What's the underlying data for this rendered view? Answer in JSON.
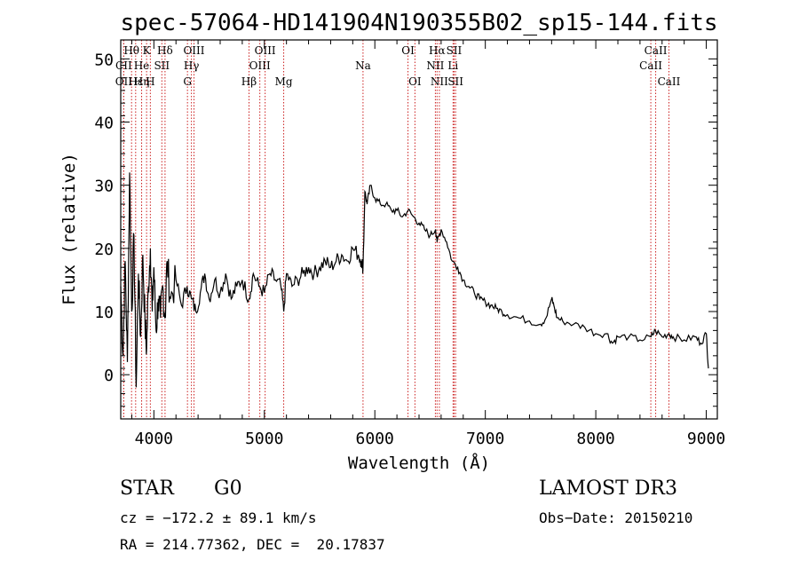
{
  "chart_data": {
    "type": "line",
    "title": "spec-57064-HD141904N190355B02_sp15-144.fits",
    "xlabel": "Wavelength (Å)",
    "ylabel": "Flux (relative)",
    "xlim": [
      3700,
      9100
    ],
    "ylim": [
      -7,
      53
    ],
    "xticks": [
      4000,
      5000,
      6000,
      7000,
      8000,
      9000
    ],
    "yticks": [
      0,
      10,
      20,
      30,
      40,
      50
    ],
    "series": [
      {
        "name": "spectrum",
        "x": [
          3700,
          3720,
          3740,
          3760,
          3780,
          3800,
          3820,
          3840,
          3860,
          3880,
          3900,
          3920,
          3934,
          3950,
          3968,
          3985,
          4000,
          4020,
          4040,
          4060,
          4080,
          4101,
          4120,
          4150,
          4200,
          4250,
          4300,
          4340,
          4380,
          4420,
          4460,
          4500,
          4550,
          4600,
          4650,
          4700,
          4750,
          4800,
          4861,
          4900,
          4950,
          5000,
          5050,
          5100,
          5150,
          5175,
          5200,
          5250,
          5300,
          5350,
          5400,
          5450,
          5500,
          5550,
          5600,
          5650,
          5700,
          5750,
          5800,
          5850,
          5880,
          5893,
          5910,
          5930,
          5960,
          6000,
          6050,
          6100,
          6150,
          6200,
          6250,
          6300,
          6350,
          6400,
          6450,
          6500,
          6550,
          6563,
          6600,
          6650,
          6700,
          6750,
          6800,
          6850,
          6900,
          6950,
          7000,
          7050,
          7100,
          7150,
          7200,
          7300,
          7400,
          7500,
          7550,
          7600,
          7620,
          7650,
          7700,
          7800,
          7900,
          8000,
          8100,
          8150,
          8200,
          8300,
          8400,
          8500,
          8540,
          8600,
          8662,
          8700,
          8800,
          8900,
          8950,
          9000,
          9020
        ],
        "values": [
          14,
          3,
          18,
          2,
          32,
          10,
          22,
          -2,
          16,
          6,
          19,
          8,
          4,
          14,
          20,
          10,
          17,
          7,
          12,
          9,
          14,
          9,
          18,
          12,
          15,
          11,
          14,
          12,
          10,
          13,
          16,
          12,
          15,
          13,
          16,
          12,
          14,
          15,
          12,
          16,
          14,
          13,
          16,
          15,
          14,
          10,
          16,
          14,
          15,
          16,
          17,
          16,
          17,
          18,
          17,
          18,
          19,
          18,
          20,
          19,
          18,
          17,
          29,
          27,
          30,
          28,
          27,
          27,
          26,
          26,
          25,
          26,
          25,
          24,
          23,
          22,
          23,
          21,
          23,
          21,
          18,
          17,
          15,
          14,
          13,
          12,
          11.5,
          11,
          10.5,
          10,
          9.5,
          9,
          8.5,
          8,
          9,
          12,
          11,
          9,
          8.5,
          8,
          7.5,
          6.5,
          6.5,
          5,
          6,
          6,
          5.5,
          6,
          7,
          6,
          6.5,
          6,
          5.5,
          6,
          5,
          6.5,
          1
        ]
      }
    ],
    "spectral_lines": [
      {
        "label": "Hθ",
        "wl": 3798,
        "row": 0
      },
      {
        "label": "K",
        "wl": 3934,
        "row": 0
      },
      {
        "label": "Hδ",
        "wl": 4101,
        "row": 0
      },
      {
        "label": "OIII",
        "wl": 4363,
        "row": 0
      },
      {
        "label": "OIII",
        "wl": 5007,
        "row": 0
      },
      {
        "label": "OI",
        "wl": 6300,
        "row": 0
      },
      {
        "label": "Hα",
        "wl": 6563,
        "row": 0
      },
      {
        "label": "SII",
        "wl": 6717,
        "row": 0
      },
      {
        "label": "CaII",
        "wl": 8542,
        "row": 0
      },
      {
        "label": "CII",
        "wl": 3727,
        "row": 1
      },
      {
        "label": "He",
        "wl": 3889,
        "row": 1
      },
      {
        "label": "SII",
        "wl": 4072,
        "row": 1
      },
      {
        "label": "Hγ",
        "wl": 4340,
        "row": 1
      },
      {
        "label": "OIII",
        "wl": 4959,
        "row": 1
      },
      {
        "label": "Na",
        "wl": 5893,
        "row": 1
      },
      {
        "label": "NII",
        "wl": 6548,
        "row": 1
      },
      {
        "label": "Li",
        "wl": 6708,
        "row": 1
      },
      {
        "label": "CaII",
        "wl": 8498,
        "row": 1
      },
      {
        "label": "OII",
        "wl": 3727,
        "row": 2
      },
      {
        "label": "Hε",
        "wl": 3835,
        "row": 2
      },
      {
        "label": "Hη",
        "wl": 3889,
        "row": 2
      },
      {
        "label": "H",
        "wl": 3968,
        "row": 2
      },
      {
        "label": "G",
        "wl": 4304,
        "row": 2
      },
      {
        "label": "Hβ",
        "wl": 4861,
        "row": 2
      },
      {
        "label": "Mg",
        "wl": 5175,
        "row": 2
      },
      {
        "label": "OI",
        "wl": 6363,
        "row": 2
      },
      {
        "label": "NII",
        "wl": 6584,
        "row": 2
      },
      {
        "label": "SII",
        "wl": 6731,
        "row": 2
      },
      {
        "label": "CaII",
        "wl": 8662,
        "row": 2
      }
    ],
    "line_color": "#cc2222",
    "spectrum_color": "#000000"
  },
  "info": {
    "object_type": "STAR",
    "subclass": "G0",
    "survey": "LAMOST DR3",
    "cz": "cz = −172.2 ± 89.1 km/s",
    "obs_date": "Obs−Date: 20150210",
    "radec": "RA = 214.77362, DEC =  20.17837"
  }
}
